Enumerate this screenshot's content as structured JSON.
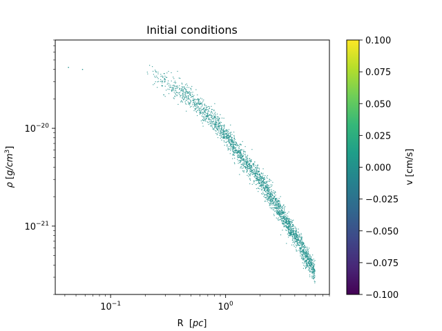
{
  "chart_data": {
    "type": "scatter",
    "title": "Initial conditions",
    "xlabel": "R",
    "xlabel_unit": "pc",
    "ylabel": "ρ",
    "ylabel_unit": "g/cm",
    "ylabel_unit_exp": "3",
    "x_scale": "log",
    "y_scale": "log",
    "xlim": [
      0.033,
      8.0
    ],
    "ylim": [
      2e-22,
      8e-20
    ],
    "x_ticks": [
      {
        "value": 0.1,
        "base": "10",
        "exp": "−1"
      },
      {
        "value": 1.0,
        "base": "10",
        "exp": "0"
      }
    ],
    "y_ticks": [
      {
        "value": 1e-21,
        "base": "10",
        "exp": "−21"
      },
      {
        "value": 1e-20,
        "base": "10",
        "exp": "−20"
      }
    ],
    "point_color": "#21918c",
    "outliers": [
      [
        0.043,
        4.2e-20
      ],
      [
        0.057,
        4e-20
      ],
      [
        0.29,
        2.2e-20
      ]
    ],
    "trend": [
      {
        "x": 0.2,
        "y": 3.7e-20
      },
      {
        "x": 0.3,
        "y": 3e-20
      },
      {
        "x": 0.5,
        "y": 2e-20
      },
      {
        "x": 0.8,
        "y": 1.2e-20
      },
      {
        "x": 1.0,
        "y": 8.5e-21
      },
      {
        "x": 1.5,
        "y": 4.5e-21
      },
      {
        "x": 2.0,
        "y": 3e-21
      },
      {
        "x": 3.0,
        "y": 1.4e-21
      },
      {
        "x": 4.0,
        "y": 8e-22
      },
      {
        "x": 5.0,
        "y": 5e-22
      },
      {
        "x": 6.0,
        "y": 3.4e-22
      }
    ],
    "grid": false,
    "colorbar": {
      "label": "v [cm/s]",
      "min": -0.1,
      "max": 0.1,
      "ticks": [
        "0.100",
        "0.075",
        "0.050",
        "0.025",
        "0.000",
        "−0.025",
        "−0.050",
        "−0.075",
        "−0.100"
      ],
      "colormap": "viridis",
      "stops": [
        "#440154",
        "#482878",
        "#3e4989",
        "#31688e",
        "#26828e",
        "#1f9e89",
        "#35b779",
        "#6ece58",
        "#b5de2b",
        "#fde725"
      ]
    }
  }
}
